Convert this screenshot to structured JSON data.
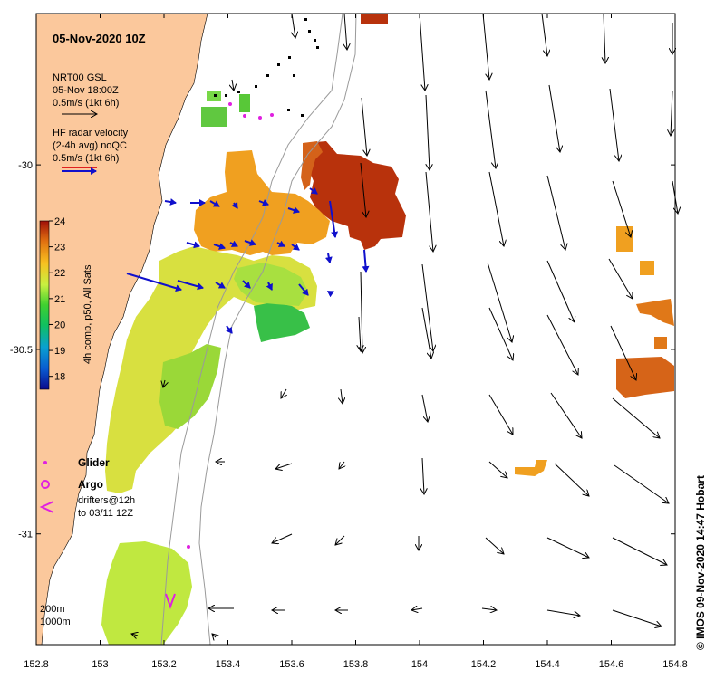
{
  "title": "05-Nov-2020 10Z",
  "colors": {
    "land": "#fbc89c",
    "ocean": "#ffffff",
    "isobath": "#9a9a9a",
    "radar_arrow": "#1010cc",
    "glider": "#e020e0",
    "model_arrow": "#000000"
  },
  "legend": {
    "model_title": "NRT00 GSL",
    "model_time": "05-Nov 18:00Z",
    "model_scale": "0.5m/s (1kt 6h)",
    "radar_title": "HF radar velocity",
    "radar_sub": "(2-4h avg) noQC",
    "radar_scale": "0.5m/s (1kt 6h)"
  },
  "colorbar": {
    "label": "4h comp, p50, All Sats",
    "ticks": [
      "24",
      "23",
      "22",
      "21",
      "20",
      "19",
      "18"
    ],
    "min": 17.5,
    "max": 24
  },
  "markers": {
    "glider": "Glider",
    "argo": "Argo",
    "drifters_line1": "drifters@12h",
    "drifters_line2": "to 03/11 12Z"
  },
  "isobaths": [
    "200m",
    "1000m"
  ],
  "credit": "© IMOS 09-Nov-2020 14:47 Hobart",
  "axes": {
    "x_ticks": [
      "152.8",
      "153",
      "153.2",
      "153.4",
      "153.6",
      "153.8",
      "154",
      "154.2",
      "154.4",
      "154.6",
      "154.8"
    ],
    "y_ticks": [
      "-30",
      "-30.5",
      "-31"
    ],
    "xlim": [
      152.8,
      154.8
    ],
    "ylim": [
      -31.3,
      -29.59
    ]
  }
}
